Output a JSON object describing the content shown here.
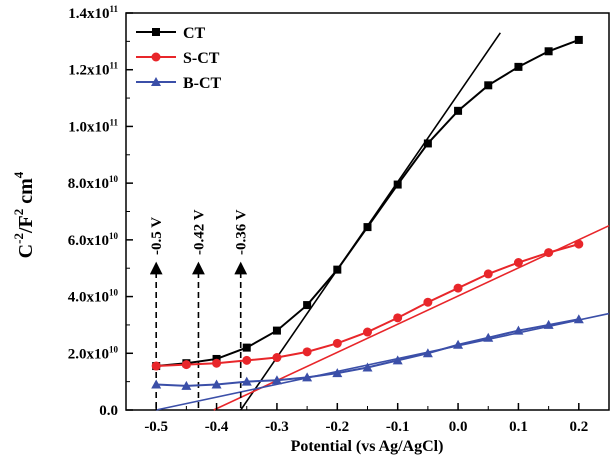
{
  "chart_data": {
    "type": "line",
    "xlabel": "Potential (vs Ag/AgCl)",
    "ylabel": {
      "base": "C",
      "sup1": "-2",
      "mid": "/F",
      "sup2": "2",
      "unit": " cm",
      "sup3": "4"
    },
    "xlim": [
      -0.55,
      0.25
    ],
    "ylim": [
      0,
      140000000000.0
    ],
    "x_ticks": [
      -0.5,
      -0.4,
      -0.3,
      -0.2,
      -0.1,
      0.0,
      0.1,
      0.2
    ],
    "x_tick_labels": [
      "-0.5",
      "-0.4",
      "-0.3",
      "-0.2",
      "-0.1",
      "0.0",
      "0.1",
      "0.2"
    ],
    "y_ticks": [
      {
        "value": 0,
        "mantissa": "0.0",
        "exp": ""
      },
      {
        "value": 20000000000.0,
        "mantissa": "2.0x10",
        "exp": "10"
      },
      {
        "value": 40000000000.0,
        "mantissa": "4.0x10",
        "exp": "10"
      },
      {
        "value": 60000000000.0,
        "mantissa": "6.0x10",
        "exp": "10"
      },
      {
        "value": 80000000000.0,
        "mantissa": "8.0x10",
        "exp": "10"
      },
      {
        "value": 100000000000.0,
        "mantissa": "1.0x10",
        "exp": "11"
      },
      {
        "value": 120000000000.0,
        "mantissa": "1.2x10",
        "exp": "11"
      },
      {
        "value": 140000000000.0,
        "mantissa": "1.4x10",
        "exp": "11"
      }
    ],
    "legend_position": "top-left",
    "series": [
      {
        "name": "CT",
        "color": "#000000",
        "marker": "square",
        "x": [
          -0.5,
          -0.45,
          -0.4,
          -0.35,
          -0.3,
          -0.25,
          -0.2,
          -0.15,
          -0.1,
          -0.05,
          0.0,
          0.05,
          0.1,
          0.15,
          0.2
        ],
        "y": [
          15500000000.0,
          16500000000.0,
          18000000000.0,
          22000000000.0,
          28000000000.0,
          37000000000.0,
          49500000000.0,
          64500000000.0,
          79500000000.0,
          94000000000.0,
          105500000000.0,
          114500000000.0,
          121000000000.0,
          126500000000.0,
          130500000000.0
        ]
      },
      {
        "name": "S-CT",
        "color": "#e8262a",
        "marker": "circle",
        "x": [
          -0.5,
          -0.45,
          -0.4,
          -0.35,
          -0.3,
          -0.25,
          -0.2,
          -0.15,
          -0.1,
          -0.05,
          0.0,
          0.05,
          0.1,
          0.15,
          0.2
        ],
        "y": [
          15500000000.0,
          16000000000.0,
          16500000000.0,
          17500000000.0,
          18500000000.0,
          20500000000.0,
          23500000000.0,
          27500000000.0,
          32500000000.0,
          38000000000.0,
          43000000000.0,
          48000000000.0,
          52000000000.0,
          55500000000.0,
          58500000000.0
        ]
      },
      {
        "name": "B-CT",
        "color": "#3b4fa8",
        "marker": "triangle",
        "x": [
          -0.5,
          -0.45,
          -0.4,
          -0.35,
          -0.3,
          -0.25,
          -0.2,
          -0.15,
          -0.1,
          -0.05,
          0.0,
          0.05,
          0.1,
          0.15,
          0.2
        ],
        "y": [
          9000000000.0,
          8500000000.0,
          9000000000.0,
          10000000000.0,
          10500000000.0,
          11500000000.0,
          13000000000.0,
          15000000000.0,
          17500000000.0,
          20000000000.0,
          23000000000.0,
          25500000000.0,
          28000000000.0,
          30000000000.0,
          32000000000.0
        ]
      }
    ],
    "fit_lines": [
      {
        "color": "#000000",
        "x": [
          -0.36,
          0.07
        ],
        "y": [
          0,
          133000000000.0
        ]
      },
      {
        "color": "#e8262a",
        "x": [
          -0.435,
          0.25
        ],
        "y": [
          -3000000000.0,
          65000000000.0
        ]
      },
      {
        "color": "#3b4fa8",
        "x": [
          -0.5,
          0.25
        ],
        "y": [
          0,
          34000000000.0
        ]
      }
    ],
    "annotations": [
      {
        "text": "-0.5 V",
        "x": -0.5
      },
      {
        "text": "-0.42 V",
        "x": -0.43
      },
      {
        "text": "-0.36 V",
        "x": -0.36
      }
    ]
  }
}
